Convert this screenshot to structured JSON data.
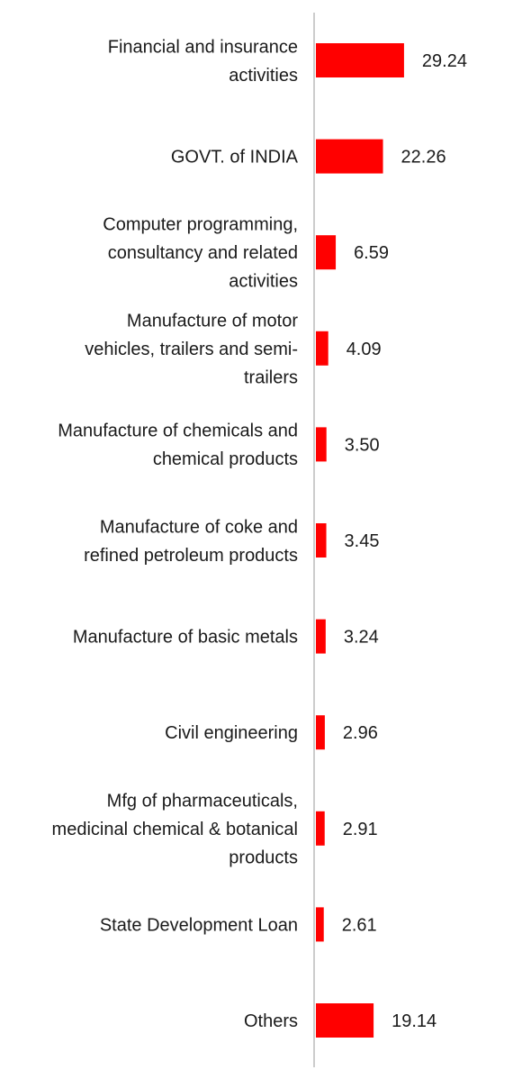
{
  "chart_data": {
    "type": "bar",
    "orientation": "horizontal",
    "categories": [
      "Financial and insurance activities",
      "GOVT. of INDIA",
      "Computer programming, consultancy and related activities",
      "Manufacture of motor vehicles, trailers and semi-trailers",
      "Manufacture of chemicals and chemical products",
      "Manufacture of coke and refined petroleum products",
      "Manufacture of basic metals",
      "Civil engineering",
      "Mfg of pharmaceuticals, medicinal chemical & botanical products",
      "State Development Loan",
      "Others"
    ],
    "category_lines": [
      [
        "Financial and insurance",
        "activities"
      ],
      [
        "GOVT. of INDIA"
      ],
      [
        "Computer programming,",
        "consultancy and related",
        "activities"
      ],
      [
        "Manufacture of motor",
        "vehicles, trailers and semi-",
        "trailers"
      ],
      [
        "Manufacture of chemicals and",
        "chemical products"
      ],
      [
        "Manufacture of coke and",
        "refined petroleum products"
      ],
      [
        "Manufacture of basic metals"
      ],
      [
        "Civil engineering"
      ],
      [
        "Mfg of pharmaceuticals,",
        "medicinal chemical & botanical",
        "products"
      ],
      [
        "State Development Loan"
      ],
      [
        "Others"
      ]
    ],
    "values": [
      29.24,
      22.26,
      6.59,
      4.09,
      3.5,
      3.45,
      3.24,
      2.96,
      2.91,
      2.61,
      19.14
    ],
    "value_labels": [
      "29.24",
      "22.26",
      "6.59",
      "4.09",
      "3.50",
      "3.45",
      "3.24",
      "2.96",
      "2.91",
      "2.61",
      "19.14"
    ],
    "xlim": [
      0,
      30
    ],
    "grid": false,
    "title": "",
    "xlabel": "",
    "ylabel": "",
    "colors": {
      "bar": "#ff0000",
      "axis": "#cccccc",
      "text": "#1a1a1a"
    }
  }
}
